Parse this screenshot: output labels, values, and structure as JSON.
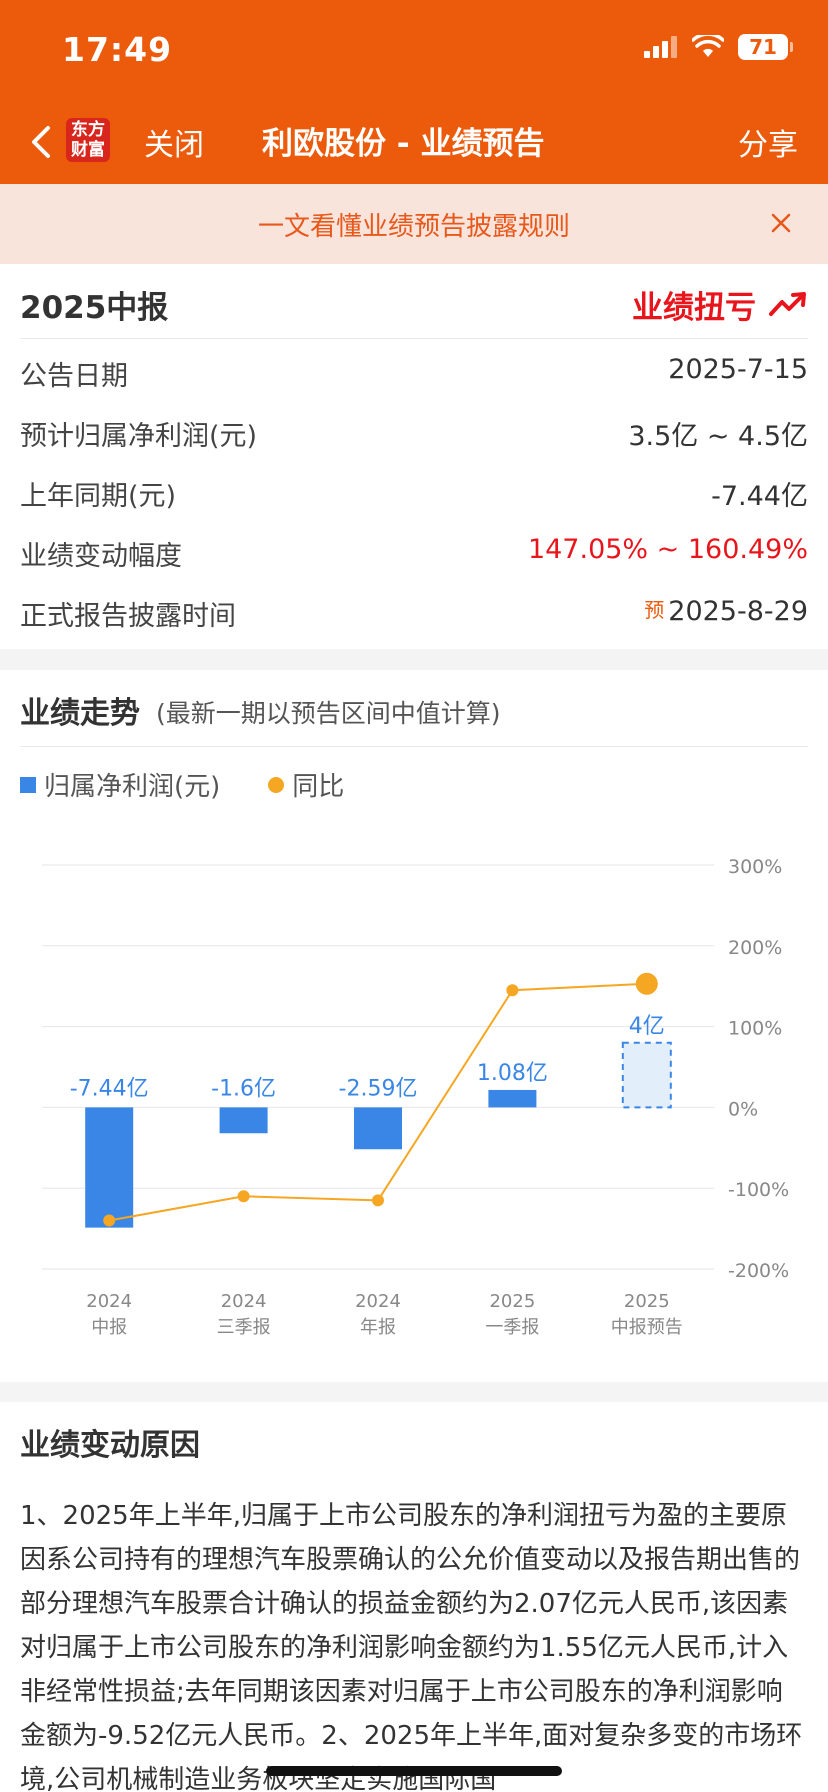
{
  "status": {
    "time": "17:49",
    "battery": "71"
  },
  "nav": {
    "logo_line1": "东方",
    "logo_line2": "财富",
    "close_label": "关闭",
    "title": "利欧股份 - 业绩预告",
    "share_label": "分享"
  },
  "notice": {
    "text": "一文看懂业绩预告披露规则"
  },
  "summary": {
    "report": "2025中报",
    "tag": "业绩扭亏",
    "rows": [
      {
        "label": "公告日期",
        "value": "2025-7-15"
      },
      {
        "label": "预计归属净利润(元)",
        "value": "3.5亿 ~ 4.5亿"
      },
      {
        "label": "上年同期(元)",
        "value": "-7.44亿"
      },
      {
        "label": "业绩变动幅度",
        "value": "147.05% ~ 160.49%"
      },
      {
        "label": "正式报告披露时间",
        "value": "2025-8-29",
        "prefix": "预"
      }
    ]
  },
  "trend": {
    "title": "业绩走势",
    "subtitle": "(最新一期以预告区间中值计算)",
    "legend_bar": "归属净利润(元)",
    "legend_line": "同比"
  },
  "chart_data": {
    "type": "bar",
    "categories": [
      "2024\n中报",
      "2024\n三季报",
      "2024\n年报",
      "2025\n一季报",
      "2025\n中报预告"
    ],
    "category_top": [
      "2024",
      "2024",
      "2024",
      "2025",
      "2025"
    ],
    "category_bottom": [
      "中报",
      "三季报",
      "年报",
      "一季报",
      "中报预告"
    ],
    "series": [
      {
        "name": "归属净利润(元)",
        "values": [
          -7.44,
          -1.6,
          -2.59,
          1.08,
          4
        ],
        "labels": [
          "-7.44亿",
          "-1.6亿",
          "-2.59亿",
          "1.08亿",
          "4亿"
        ],
        "forecast_last": true
      },
      {
        "name": "同比",
        "values": [
          -140,
          -110,
          -115,
          145,
          153
        ]
      }
    ],
    "y2_ticks": [
      "300%",
      "200%",
      "100%",
      "0%",
      "-100%",
      "-200%"
    ],
    "y2lim": [
      -200,
      300
    ],
    "grid": true,
    "colors": {
      "bar": "#3a86e6",
      "line": "#f5a623"
    }
  },
  "reason": {
    "title": "业绩变动原因",
    "text": "1、2025年上半年,归属于上市公司股东的净利润扭亏为盈的主要原因系公司持有的理想汽车股票确认的公允价值变动以及报告期出售的部分理想汽车股票合计确认的损益金额约为2.07亿元人民币,该因素对归属于上市公司股东的净利润影响金额约为1.55亿元人民币,计入非经常性损益;去年同期该因素对归属于上市公司股东的净利润影响金额为-9.52亿元人民币。2、2025年上半年,面对复杂多变的市场环境,公司机械制造业务板块坚定实施国际国"
  }
}
